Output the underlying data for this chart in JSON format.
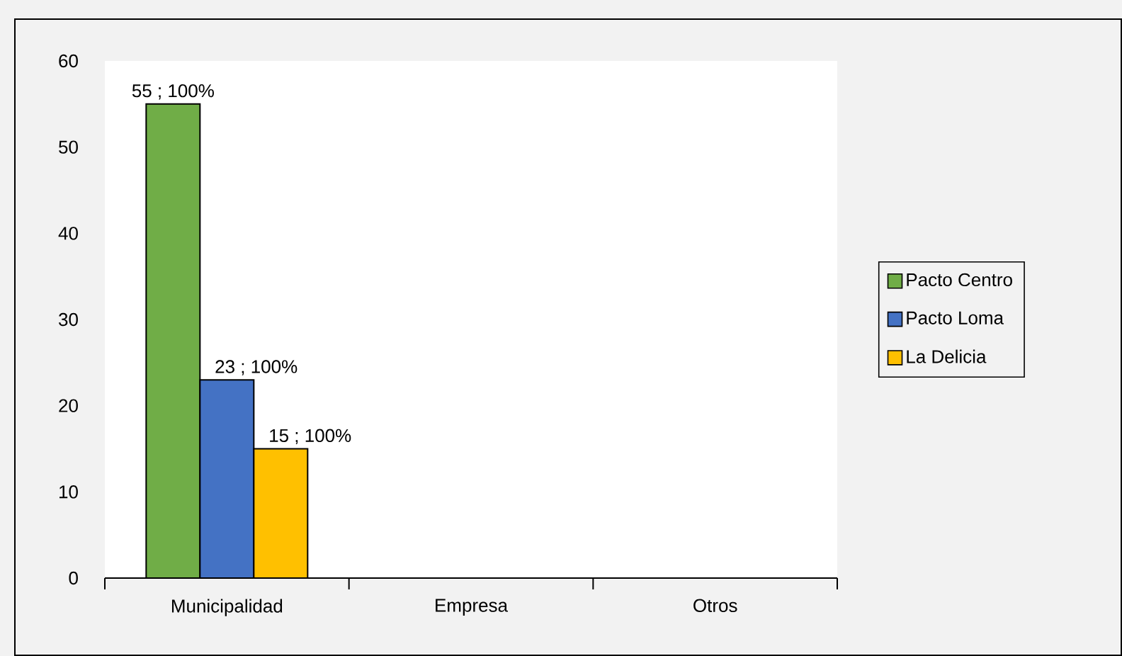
{
  "chart_data": {
    "type": "bar",
    "categories": [
      "Municipalidad",
      "Empresa",
      "Otros"
    ],
    "series": [
      {
        "name": "Pacto Centro",
        "color": "#70ad47",
        "values": [
          55,
          null,
          null
        ],
        "value_labels": [
          "55 ; 100%",
          null,
          null
        ]
      },
      {
        "name": "Pacto Loma",
        "color": "#4472c4",
        "values": [
          23,
          null,
          null
        ],
        "value_labels": [
          "23 ; 100%",
          null,
          null
        ]
      },
      {
        "name": "La Delicia",
        "color": "#ffc000",
        "values": [
          15,
          null,
          null
        ],
        "value_labels": [
          "15 ; 100%",
          null,
          null
        ]
      }
    ],
    "ylim": [
      0,
      60
    ],
    "yticks": [
      0,
      10,
      20,
      30,
      40,
      50,
      60
    ],
    "legend": "right"
  }
}
